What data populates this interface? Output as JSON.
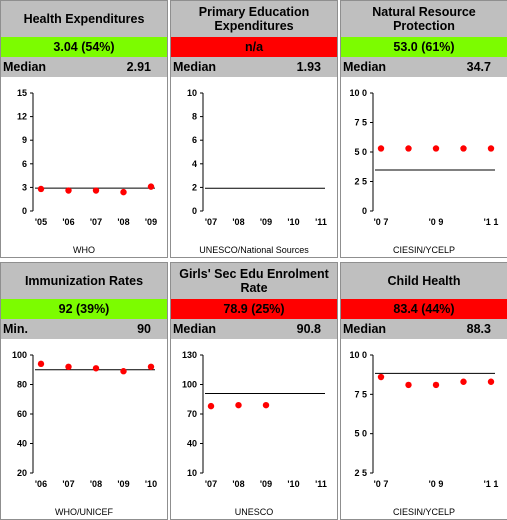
{
  "colors": {
    "good": "#7cfc00",
    "bad": "#ff0000",
    "header": "#bfbfbf",
    "dot": "#ff0000"
  },
  "panels": [
    {
      "title": "Health Expenditures",
      "score": "3.04 (54%)",
      "score_color": "#7cfc00",
      "median_label": "Median",
      "median_value": "2.91",
      "source": "WHO"
    },
    {
      "title": "Primary Education Expenditures",
      "score": "n/a",
      "score_color": "#ff0000",
      "median_label": "Median",
      "median_value": "1.93",
      "source": "UNESCO/National Sources"
    },
    {
      "title": "Natural Resource Protection",
      "score": "53.0 (61%)",
      "score_color": "#7cfc00",
      "median_label": "Median",
      "median_value": "34.7",
      "source": "CIESIN/YCELP"
    },
    {
      "title": "Immunization Rates",
      "score": "92 (39%)",
      "score_color": "#7cfc00",
      "median_label": "Min.",
      "median_value": "90",
      "source": "WHO/UNICEF"
    },
    {
      "title": "Girls' Sec Edu Enrolment Rate",
      "score": "78.9 (25%)",
      "score_color": "#ff0000",
      "median_label": "Median",
      "median_value": "90.8",
      "source": "UNESCO"
    },
    {
      "title": "Child Health",
      "score": "83.4 (44%)",
      "score_color": "#ff0000",
      "median_label": "Median",
      "median_value": "88.3",
      "source": "CIESIN/YCELP"
    }
  ],
  "chart_data": [
    {
      "type": "scatter",
      "title": "Health Expenditures",
      "x_ticks": [
        "'05",
        "'06",
        "'07",
        "'08",
        "'09"
      ],
      "y_ticks": [
        "0",
        "3",
        "6",
        "9",
        "12",
        "15"
      ],
      "ylim": [
        0,
        15
      ],
      "series": [
        {
          "x": [
            0,
            1,
            2,
            3,
            4
          ],
          "values": [
            2.8,
            2.6,
            2.6,
            2.4,
            3.1
          ]
        }
      ],
      "reference_line": 2.91
    },
    {
      "type": "scatter",
      "title": "Primary Education Expenditures",
      "x_ticks": [
        "'07",
        "'08",
        "'09",
        "'10",
        "'11"
      ],
      "y_ticks": [
        "0",
        "2",
        "4",
        "6",
        "8",
        "10"
      ],
      "ylim": [
        0,
        10
      ],
      "series": [
        {
          "x": [],
          "values": []
        }
      ],
      "reference_line": 1.93
    },
    {
      "type": "scatter",
      "title": "Natural Resource Protection",
      "x_ticks": [
        "'0 7",
        "'0 9",
        "'1 1"
      ],
      "x_tick_positions": [
        0,
        2,
        4
      ],
      "y_ticks": [
        "0",
        "2 5",
        "5 0",
        "7 5",
        "10 0"
      ],
      "ylim": [
        0,
        100
      ],
      "series": [
        {
          "x": [
            0,
            1,
            2,
            3,
            4
          ],
          "values": [
            53,
            53,
            53,
            53,
            53
          ]
        }
      ],
      "reference_line": 34.7
    },
    {
      "type": "scatter",
      "title": "Immunization Rates",
      "x_ticks": [
        "'06",
        "'07",
        "'08",
        "'09",
        "'10"
      ],
      "y_ticks": [
        "20",
        "40",
        "60",
        "80",
        "100"
      ],
      "ylim": [
        20,
        100
      ],
      "series": [
        {
          "x": [
            0,
            1,
            2,
            3,
            4
          ],
          "values": [
            94,
            92,
            91,
            89,
            92
          ]
        }
      ],
      "reference_line": 90
    },
    {
      "type": "scatter",
      "title": "Girls' Sec Edu Enrolment Rate",
      "x_ticks": [
        "'07",
        "'08",
        "'09",
        "'10",
        "'11"
      ],
      "y_ticks": [
        "10",
        "40",
        "70",
        "100",
        "130"
      ],
      "ylim": [
        10,
        130
      ],
      "series": [
        {
          "x": [
            0,
            1,
            2
          ],
          "values": [
            78,
            79,
            79
          ]
        }
      ],
      "reference_line": 90.8
    },
    {
      "type": "scatter",
      "title": "Child Health",
      "x_ticks": [
        "'0 7",
        "'0 9",
        "'1 1"
      ],
      "x_tick_positions": [
        0,
        2,
        4
      ],
      "y_ticks": [
        "2 5",
        "5 0",
        "7 5",
        "10 0"
      ],
      "ylim": [
        25,
        100
      ],
      "series": [
        {
          "x": [
            0,
            1,
            2,
            3,
            4
          ],
          "values": [
            86,
            81,
            81,
            83,
            83
          ]
        }
      ],
      "reference_line": 88.3
    }
  ]
}
